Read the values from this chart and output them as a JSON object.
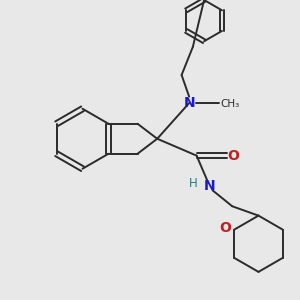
{
  "bg_color": "#e8e8e8",
  "bond_color": "#2b2b2b",
  "N_color": "#1a1acc",
  "O_color": "#cc1a1a",
  "H_color": "#2b7b7b",
  "line_width": 1.4,
  "font_size_atom": 8.5,
  "xlim": [
    0,
    3.0
  ],
  "ylim": [
    0,
    3.2
  ],
  "figsize": [
    3.0,
    3.0
  ],
  "dpi": 100
}
